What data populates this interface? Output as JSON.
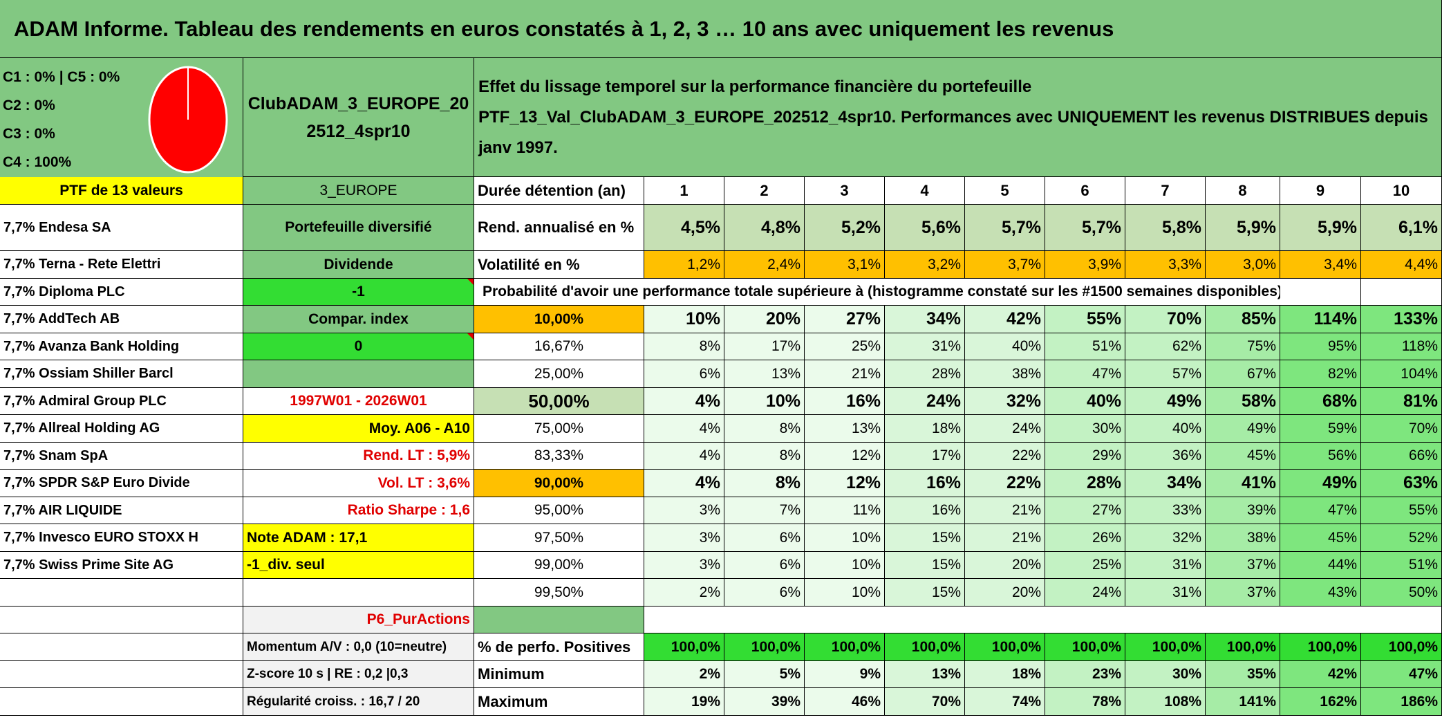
{
  "title": "ADAM Informe. Tableau des rendements en euros constatés à 1, 2, 3 … 10 ans avec uniquement les revenus",
  "legend": [
    "C1 : 0% | C5 : 0%",
    "C2 : 0%",
    "C3 : 0%",
    "C4 : 100%"
  ],
  "pie": {
    "slices": [
      {
        "label": "C4",
        "value": 100,
        "color": "#ff0000"
      }
    ]
  },
  "portfolio_name": "ClubADAM_3_EUROPE_202512_4spr10",
  "description": "Effet du lissage temporel sur la performance financière du portefeuille PTF_13_Val_ClubADAM_3_EUROPE_202512_4spr10. Performances avec UNIQUEMENT les revenus DISTRIBUES depuis janv 1997.",
  "ptf_label": "PTF de 13 valeurs",
  "holdings": [
    "7,7% Endesa SA",
    "7,7% Terna - Rete Elettri",
    "7,7% Diploma PLC",
    "7,7% AddTech AB",
    "7,7% Avanza Bank Holding",
    "7,7% Ossiam Shiller Barcl",
    "7,7% Admiral Group PLC",
    "7,7% Allreal Holding AG",
    "7,7% Snam SpA",
    "7,7% SPDR S&P Euro Divide",
    "7,7% AIR LIQUIDE",
    "7,7% Invesco EURO STOXX H",
    "7,7% Swiss Prime Site AG"
  ],
  "info": {
    "zone": "3_EUROPE",
    "type": "Portefeuille diversifié",
    "dividend_label": "Dividende",
    "dividend_value": "-1",
    "compar_label": "Compar. index",
    "compar_value": "0",
    "period": "1997W01 - 2026W01",
    "moy": "Moy. A06 - A10",
    "rend_lt": "Rend. LT : 5,9%",
    "vol_lt": "Vol. LT : 3,6%",
    "sharpe": "Ratio Sharpe : 1,6",
    "note": "Note ADAM : 17,1",
    "div_only": "-1_div. seul",
    "p6": "P6_PurActions",
    "momentum": "Momentum A/V : 0,0 (10=neutre)",
    "zscore": "Z-score 10 s | RE : 0,2 |0,3",
    "regularite": "Régularité croiss. : 16,7 / 20"
  },
  "table": {
    "duration_label": "Durée détention (an)",
    "years": [
      "1",
      "2",
      "3",
      "4",
      "5",
      "6",
      "7",
      "8",
      "9",
      "10"
    ],
    "rend_label": "Rend. annualisé en %",
    "rend": [
      "4,5%",
      "4,8%",
      "5,2%",
      "5,6%",
      "5,7%",
      "5,7%",
      "5,8%",
      "5,9%",
      "5,9%",
      "6,1%"
    ],
    "vol_label": "Volatilité en %",
    "vol": [
      "1,2%",
      "2,4%",
      "3,1%",
      "3,2%",
      "3,7%",
      "3,9%",
      "3,3%",
      "3,0%",
      "3,4%",
      "4,4%"
    ],
    "prob_header": "Probabilité d'avoir une performance totale supérieure à (histogramme constaté sur les #1500 semaines disponibles)",
    "prob_rows": [
      {
        "p": "10,00%",
        "v": [
          "10%",
          "20%",
          "27%",
          "34%",
          "42%",
          "55%",
          "70%",
          "85%",
          "114%",
          "133%"
        ]
      },
      {
        "p": "16,67%",
        "v": [
          "8%",
          "17%",
          "25%",
          "31%",
          "40%",
          "51%",
          "62%",
          "75%",
          "95%",
          "118%"
        ]
      },
      {
        "p": "25,00%",
        "v": [
          "6%",
          "13%",
          "21%",
          "28%",
          "38%",
          "47%",
          "57%",
          "67%",
          "82%",
          "104%"
        ]
      },
      {
        "p": "50,00%",
        "v": [
          "4%",
          "10%",
          "16%",
          "24%",
          "32%",
          "40%",
          "49%",
          "58%",
          "68%",
          "81%"
        ]
      },
      {
        "p": "75,00%",
        "v": [
          "4%",
          "8%",
          "13%",
          "18%",
          "24%",
          "30%",
          "40%",
          "49%",
          "59%",
          "70%"
        ]
      },
      {
        "p": "83,33%",
        "v": [
          "4%",
          "8%",
          "12%",
          "17%",
          "22%",
          "29%",
          "36%",
          "45%",
          "56%",
          "66%"
        ]
      },
      {
        "p": "90,00%",
        "v": [
          "4%",
          "8%",
          "12%",
          "16%",
          "22%",
          "28%",
          "34%",
          "41%",
          "49%",
          "63%"
        ]
      },
      {
        "p": "95,00%",
        "v": [
          "3%",
          "7%",
          "11%",
          "16%",
          "21%",
          "27%",
          "33%",
          "39%",
          "47%",
          "55%"
        ]
      },
      {
        "p": "97,50%",
        "v": [
          "3%",
          "6%",
          "10%",
          "15%",
          "21%",
          "26%",
          "32%",
          "38%",
          "45%",
          "52%"
        ]
      },
      {
        "p": "99,00%",
        "v": [
          "3%",
          "6%",
          "10%",
          "15%",
          "20%",
          "25%",
          "31%",
          "37%",
          "44%",
          "51%"
        ]
      },
      {
        "p": "99,50%",
        "v": [
          "2%",
          "6%",
          "10%",
          "15%",
          "20%",
          "24%",
          "31%",
          "37%",
          "43%",
          "50%"
        ]
      }
    ],
    "pos_label": "% de perfo. Positives",
    "pos": [
      "100,0%",
      "100,0%",
      "100,0%",
      "100,0%",
      "100,0%",
      "100,0%",
      "100,0%",
      "100,0%",
      "100,0%",
      "100,0%"
    ],
    "min_label": "Minimum",
    "min": [
      "2%",
      "5%",
      "9%",
      "13%",
      "18%",
      "23%",
      "30%",
      "35%",
      "42%",
      "47%"
    ],
    "max_label": "Maximum",
    "max": [
      "19%",
      "39%",
      "46%",
      "70%",
      "74%",
      "78%",
      "108%",
      "141%",
      "162%",
      "186%"
    ]
  },
  "colors": {
    "header_green": "#82c882",
    "yellow": "#ffff00",
    "orange": "#ffc000",
    "red": "#e00000",
    "bright_green": "#33dd33"
  }
}
